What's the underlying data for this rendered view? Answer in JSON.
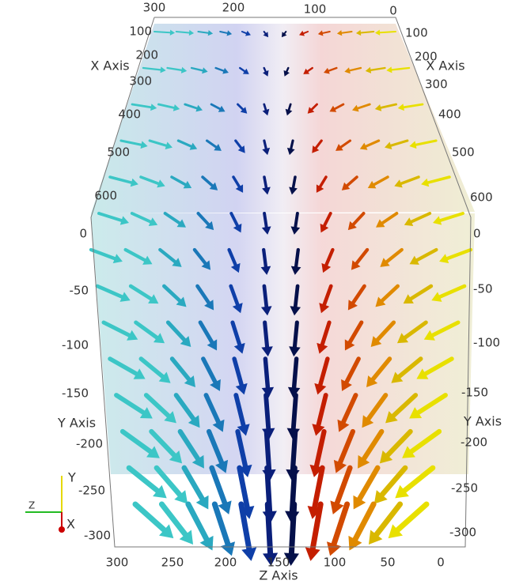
{
  "top_axis": {
    "ticks": [
      "300",
      "200",
      "100",
      "0"
    ]
  },
  "left_x_axis": {
    "title": "X Axis",
    "ticks": [
      "100",
      "200",
      "300",
      "400",
      "500",
      "600"
    ]
  },
  "right_x_axis": {
    "title": "X Axis",
    "ticks": [
      "100",
      "200",
      "300",
      "400",
      "500",
      "600"
    ]
  },
  "left_y_axis": {
    "title": "Y Axis",
    "ticks": [
      "0",
      "-50",
      "-100",
      "-150",
      "-200",
      "-250",
      "-300"
    ]
  },
  "right_y_axis": {
    "title": "Y Axis",
    "ticks": [
      "0",
      "-50",
      "-100",
      "-150",
      "-200",
      "-250",
      "-300"
    ]
  },
  "bottom_axis": {
    "title": "Z Axis",
    "ticks": [
      "300",
      "250",
      "200",
      "150",
      "100",
      "50",
      "0"
    ]
  },
  "orientation": {
    "y": "Y",
    "z": "Z",
    "x": "X"
  }
}
